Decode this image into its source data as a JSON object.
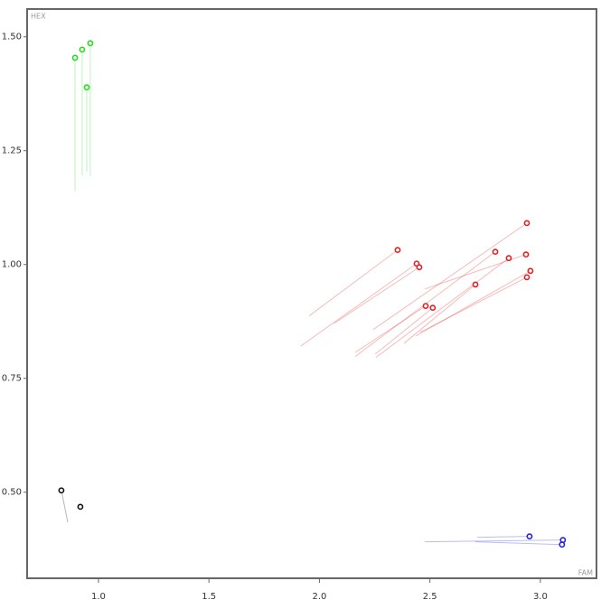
{
  "chart_data": {
    "type": "scatter",
    "x_label": "FAM",
    "y_label": "HEX",
    "xlim": [
      0.677,
      3.254
    ],
    "ylim": [
      0.311,
      1.561
    ],
    "xticks": [
      {
        "value": 1,
        "label": "1.0"
      },
      1.5,
      {
        "value": 2,
        "label": "2.0"
      },
      2.5,
      {
        "value": 3,
        "label": "3.0"
      }
    ],
    "yticks": [
      {
        "value": 1.5,
        "label": "1.50"
      },
      1.25,
      {
        "value": 1,
        "label": "1.00"
      },
      0.75,
      {
        "value": 0.5,
        "label": "0.50"
      }
    ],
    "series": [
      {
        "color": "#22dd22",
        "x": [
          0.894,
          0.926,
          0.963,
          0.947
        ],
        "y": [
          1.454,
          1.472,
          1.486,
          1.389
        ],
        "trail_x": [
          0.894,
          0.926,
          0.963,
          0.947
        ],
        "trail_y": [
          1.161,
          1.195,
          1.194,
          1.204
        ]
      },
      {
        "color": "#dd2222",
        "x": [
          2.354,
          2.44,
          2.452,
          2.939,
          2.796,
          2.857,
          2.935,
          2.955,
          2.939,
          2.706,
          2.481,
          2.513
        ],
        "y": [
          1.032,
          1.002,
          0.994,
          1.091,
          1.028,
          1.014,
          1.022,
          0.986,
          0.972,
          0.956,
          0.909,
          0.905
        ],
        "trail_x": [
          1.953,
          1.916,
          2.067,
          2.243,
          2.162,
          2.256,
          2.476,
          2.436,
          2.456,
          2.383,
          2.162,
          2.252
        ],
        "trail_y": [
          0.887,
          0.821,
          0.871,
          0.857,
          0.798,
          0.796,
          0.946,
          0.843,
          0.851,
          0.827,
          0.807,
          0.803
        ]
      },
      {
        "color": "#111111",
        "x": [
          0.832,
          0.918
        ],
        "y": [
          0.504,
          0.468
        ],
        "trail_x": [
          0.861,
          0.918
        ],
        "trail_y": [
          0.434,
          0.468
        ]
      },
      {
        "color": "#2222dd",
        "x": [
          2.951,
          3.102,
          3.098
        ],
        "y": [
          0.403,
          0.395,
          0.385
        ],
        "trail_x": [
          2.714,
          2.476,
          2.706
        ],
        "trail_y": [
          0.401,
          0.391,
          0.391
        ]
      }
    ]
  }
}
